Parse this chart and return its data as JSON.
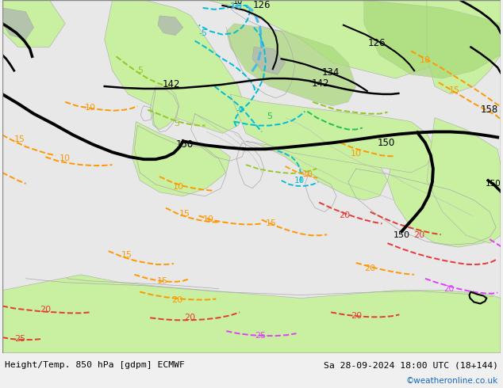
{
  "title_left": "Height/Temp. 850 hPa [gdpm] ECMWF",
  "title_right": "Sa 28-09-2024 18:00 UTC (18+144)",
  "credit": "©weatheronline.co.uk",
  "ocean_color": "#e8e8e8",
  "land_color_light": "#c8f0a0",
  "land_color_dark": "#a8d878",
  "coast_color": "#aaaaaa",
  "figsize": [
    6.34,
    4.9
  ],
  "dpi": 100
}
